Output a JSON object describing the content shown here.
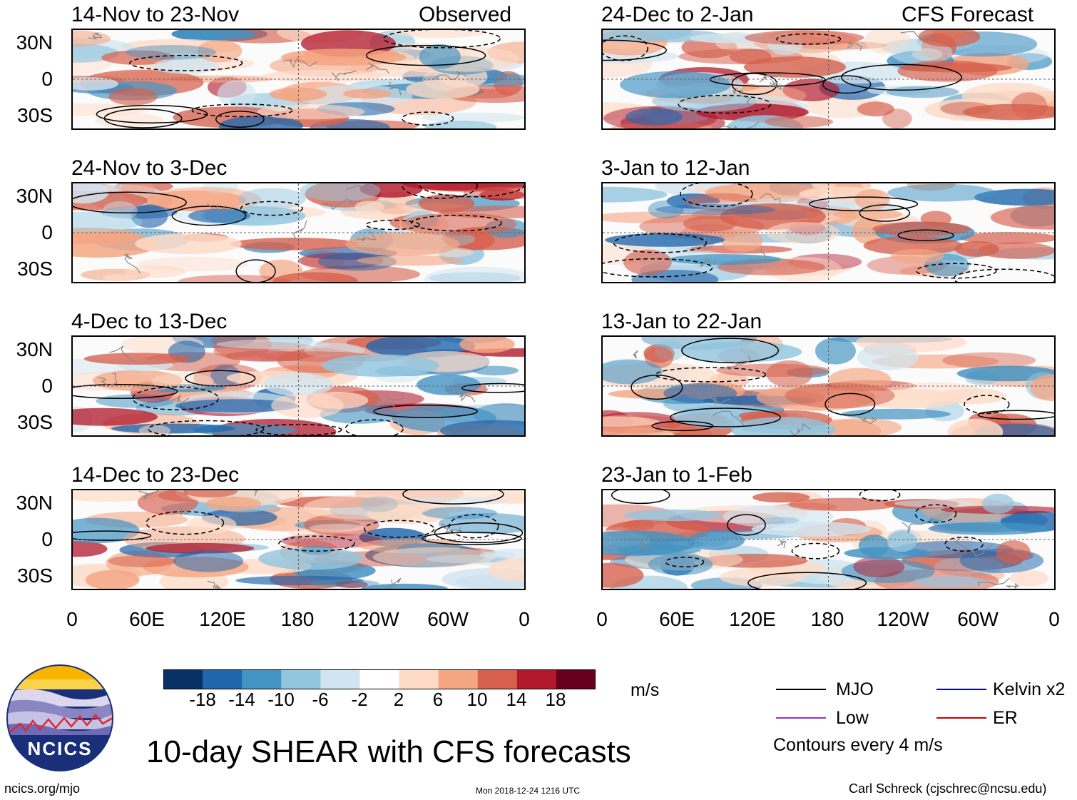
{
  "left_header": "Observed",
  "right_header": "CFS Forecast",
  "panels": {
    "obs": [
      {
        "title": "14-Nov to 23-Nov"
      },
      {
        "title": "24-Nov to 3-Dec"
      },
      {
        "title": "4-Dec to 13-Dec"
      },
      {
        "title": "14-Dec to 23-Dec"
      }
    ],
    "fcst": [
      {
        "title": "24-Dec to 2-Jan"
      },
      {
        "title": "3-Jan to 12-Jan"
      },
      {
        "title": "13-Jan to 22-Jan"
      },
      {
        "title": "23-Jan to 1-Feb"
      }
    ]
  },
  "lat_labels": [
    "30N",
    "0",
    "30S"
  ],
  "lon_labels": [
    "0",
    "60E",
    "120E",
    "180",
    "120W",
    "60W",
    "0"
  ],
  "colorbar": {
    "ticks": [
      "-18",
      "-14",
      "-10",
      "-6",
      "-2",
      "2",
      "6",
      "10",
      "14",
      "18"
    ],
    "colors": [
      "#0a3166",
      "#2166ac",
      "#4393c3",
      "#92c5de",
      "#d1e5f0",
      "#ffffff",
      "#fddbc7",
      "#f4a582",
      "#d6604d",
      "#b2182b",
      "#67001f"
    ],
    "units": "m/s"
  },
  "legend": {
    "mjo": "MJO",
    "low": "Low",
    "kelvin": "Kelvin x2",
    "er": "ER",
    "contours": "Contours every 4 m/s"
  },
  "legend_colors": {
    "mjo": "#000000",
    "low": "#9932cc",
    "kelvin": "#0000cc",
    "er": "#cc0000"
  },
  "logo_text": "NCICS",
  "main_title": "10-day SHEAR with CFS forecasts",
  "footer": {
    "url": "ncics.org/mjo",
    "timestamp": "Mon 2018-12-24 1216 UTC",
    "author": "Carl Schreck (cjschrec@ncsu.edu)"
  }
}
